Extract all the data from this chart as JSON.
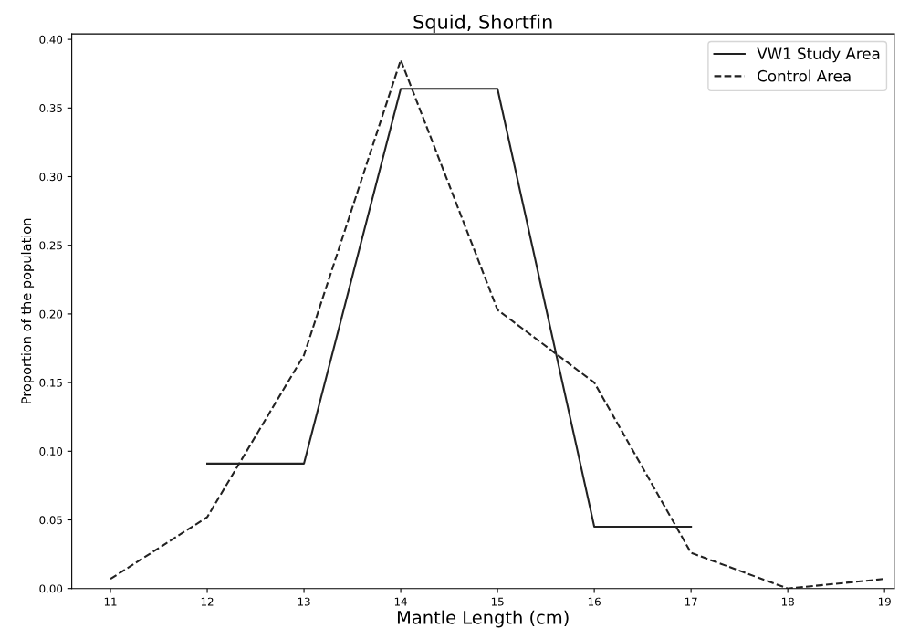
{
  "chart_data": {
    "type": "line",
    "title": "Squid, Shortfin",
    "xlabel": "Mantle Length (cm)",
    "ylabel": "Proportion of the population",
    "xlim": [
      10.6,
      19.1
    ],
    "xticks": [
      11,
      12,
      13,
      14,
      15,
      16,
      17,
      18,
      19
    ],
    "ylim": [
      0,
      0.404
    ],
    "yticks": [
      {
        "value": 0,
        "label": "0.00"
      },
      {
        "value": 0.05,
        "label": "0.05"
      },
      {
        "value": 0.1,
        "label": "0.10"
      },
      {
        "value": 0.15,
        "label": "0.15"
      },
      {
        "value": 0.2,
        "label": "0.20"
      },
      {
        "value": 0.25,
        "label": "0.25"
      },
      {
        "value": 0.3,
        "label": "0.30"
      },
      {
        "value": 0.35,
        "label": "0.35"
      },
      {
        "value": 0.4,
        "label": "0.40"
      }
    ],
    "legend": "top right",
    "grid": false,
    "series": [
      {
        "name": "VW1 Study Area",
        "color": "#222222",
        "line_style": "solid",
        "x": [
          12,
          13,
          14,
          15,
          16,
          17
        ],
        "values": [
          0.091,
          0.091,
          0.364,
          0.364,
          0.045,
          0.045
        ]
      },
      {
        "name": "Control Area",
        "color": "#222222",
        "line_style": "dashed",
        "x": [
          11,
          12,
          13,
          14,
          15,
          16,
          17,
          18,
          19
        ],
        "values": [
          0.007,
          0.052,
          0.17,
          0.385,
          0.203,
          0.15,
          0.026,
          0.0,
          0.007
        ]
      }
    ]
  }
}
